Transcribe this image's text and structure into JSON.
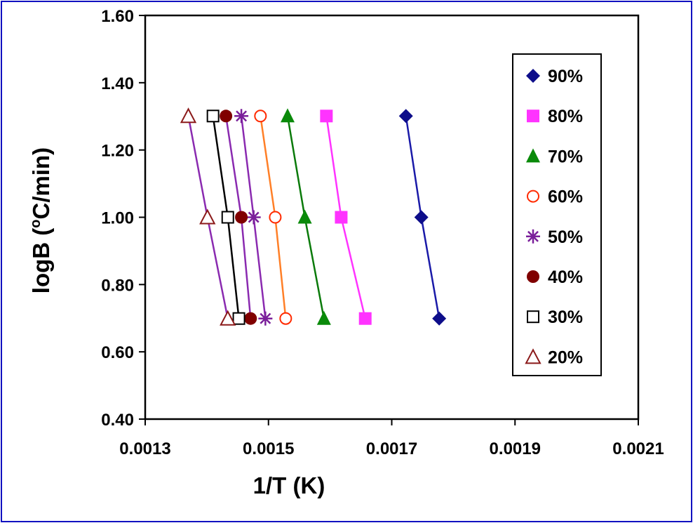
{
  "chart_data": {
    "type": "line",
    "title": "",
    "xlabel": "1/T (K)",
    "ylabel_main": "logB (",
    "ylabel_sup": "o",
    "ylabel_rest": "C/min)",
    "xlim": [
      0.0013,
      0.0021
    ],
    "ylim": [
      0.4,
      1.6
    ],
    "x_ticks": [
      0.0013,
      0.0015,
      0.0017,
      0.0019,
      0.0021
    ],
    "x_tick_labels": [
      "0.0013",
      "0.0015",
      "0.0017",
      "0.0019",
      "0.0021"
    ],
    "y_ticks": [
      0.4,
      0.6,
      0.8,
      1.0,
      1.2,
      1.4,
      1.6
    ],
    "y_tick_labels": [
      "0.40",
      "0.60",
      "0.80",
      "1.00",
      "1.20",
      "1.40",
      "1.60"
    ],
    "grid": false,
    "legend_position": "right",
    "series": [
      {
        "name": "90%",
        "color": "#0d0d8a",
        "line_color": "#1a1aa8",
        "marker": "diamond",
        "x": [
          0.001723,
          0.001748,
          0.001777
        ],
        "y": [
          1.301,
          1.0,
          0.699
        ]
      },
      {
        "name": "80%",
        "color": "#ff33ff",
        "line_color": "#ff33ff",
        "marker": "square",
        "x": [
          0.001594,
          0.001618,
          0.001657
        ],
        "y": [
          1.301,
          1.0,
          0.699
        ]
      },
      {
        "name": "70%",
        "color": "#0a8a0a",
        "line_color": "#0a7a0a",
        "marker": "triangle",
        "x": [
          0.001531,
          0.001559,
          0.00159
        ],
        "y": [
          1.301,
          1.0,
          0.699
        ]
      },
      {
        "name": "60%",
        "color": "#ff2a00",
        "line_color": "#ff7f27",
        "marker": "circle-open",
        "x": [
          0.001487,
          0.001511,
          0.001528
        ],
        "y": [
          1.301,
          1.0,
          0.699
        ]
      },
      {
        "name": "50%",
        "color": "#7a1f9a",
        "line_color": "#8a2ab0",
        "marker": "star",
        "x": [
          0.001456,
          0.001476,
          0.001495
        ],
        "y": [
          1.301,
          1.0,
          0.699
        ]
      },
      {
        "name": "40%",
        "color": "#800000",
        "line_color": "#8a2ab0",
        "marker": "circle-filled",
        "x": [
          0.001431,
          0.001456,
          0.001471
        ],
        "y": [
          1.301,
          1.0,
          0.699
        ]
      },
      {
        "name": "30%",
        "color": "#000000",
        "line_color": "#000000",
        "marker": "square-open",
        "x": [
          0.00141,
          0.001434,
          0.001452
        ],
        "y": [
          1.301,
          1.0,
          0.699
        ]
      },
      {
        "name": "20%",
        "color": "#8b1a1a",
        "line_color": "#8a2ab0",
        "marker": "triangle-open",
        "x": [
          0.00137,
          0.001401,
          0.001434
        ],
        "y": [
          1.301,
          1.0,
          0.699
        ]
      }
    ]
  }
}
